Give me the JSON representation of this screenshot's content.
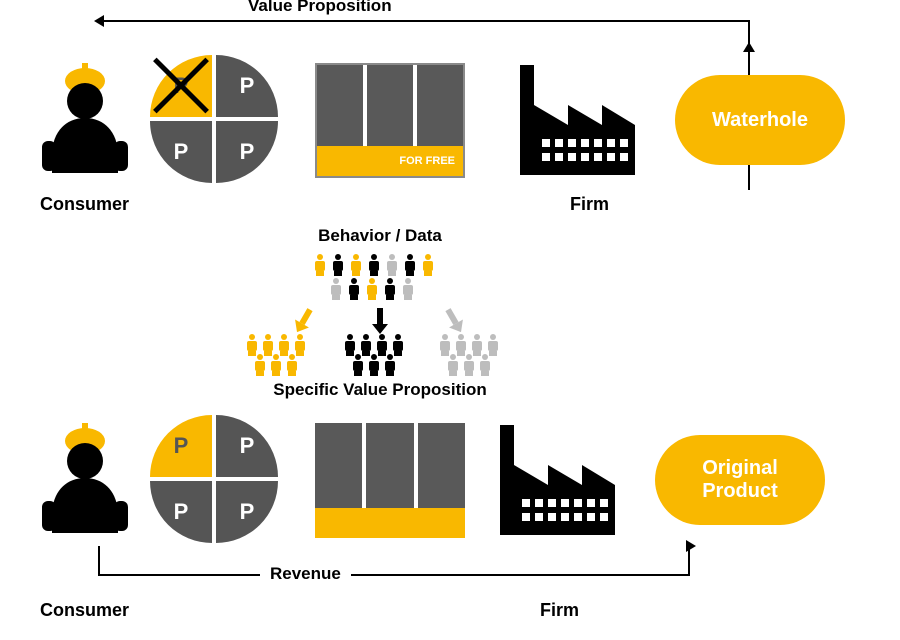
{
  "colors": {
    "yellow": "#f9b800",
    "dark_gray": "#555555",
    "light_gray": "#bdbdbd",
    "black": "#000000",
    "white": "#ffffff",
    "band_gray_top": "#8a8a8a"
  },
  "top": {
    "arrow_label": "Value Proposition",
    "consumer_label": "Consumer",
    "firm_label": "Firm",
    "pie": {
      "q1": {
        "label": "P",
        "bg": "#f9b800",
        "fg": "#555555",
        "crossed": true
      },
      "q2": {
        "label": "P",
        "bg": "#555555",
        "fg": "#ffffff",
        "crossed": false
      },
      "q3": {
        "label": "P",
        "bg": "#555555",
        "fg": "#ffffff",
        "crossed": false
      },
      "q4": {
        "label": "P",
        "bg": "#555555",
        "fg": "#ffffff",
        "crossed": false
      }
    },
    "product": {
      "bar_color": "#595959",
      "band_bg": "#f9b800",
      "band_text": "FOR FREE",
      "band_text_color": "#ffffff",
      "border_color": "#8a8a8a"
    },
    "oval": {
      "line1": "Waterhole",
      "bg": "#f9b800",
      "fg": "#ffffff"
    }
  },
  "middle": {
    "top_label": "Behavior / Data",
    "bottom_label": "Specific Value Proposition",
    "arrow_colors": {
      "left": "#f9b800",
      "center": "#000000",
      "right": "#bdbdbd"
    },
    "crowd_colors": {
      "yellow": "#f9b800",
      "black": "#000000",
      "gray": "#bdbdbd"
    }
  },
  "bottom": {
    "arrow_label": "Revenue",
    "consumer_label": "Consumer",
    "firm_label": "Firm",
    "pie": {
      "q1": {
        "label": "P",
        "bg": "#f9b800",
        "fg": "#555555"
      },
      "q2": {
        "label": "P",
        "bg": "#555555",
        "fg": "#ffffff"
      },
      "q3": {
        "label": "P",
        "bg": "#555555",
        "fg": "#ffffff"
      },
      "q4": {
        "label": "P",
        "bg": "#555555",
        "fg": "#ffffff"
      }
    },
    "product": {
      "bar_color": "#595959",
      "band_bg": "#f9b800",
      "band_text": "",
      "band_text_color": "#ffffff"
    },
    "oval": {
      "line1": "Original",
      "line2": "Product",
      "bg": "#f9b800",
      "fg": "#ffffff"
    }
  },
  "icons": {
    "consumer_color": "#000000",
    "consumer_helmet": "#f9b800",
    "factory_color": "#000000"
  }
}
